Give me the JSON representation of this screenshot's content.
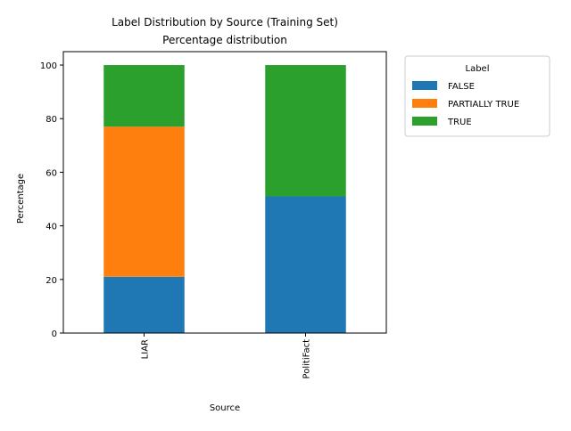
{
  "chart_data": {
    "type": "bar",
    "stacked": true,
    "title": "Label Distribution by Source (Training Set)",
    "subtitle": "Percentage distribution",
    "xlabel": "Source",
    "ylabel": "Percentage",
    "categories": [
      "LIAR",
      "PolitiFact"
    ],
    "series": [
      {
        "name": "FALSE",
        "values": [
          21,
          51
        ],
        "color": "#1f77b4"
      },
      {
        "name": "PARTIALLY TRUE",
        "values": [
          56,
          0
        ],
        "color": "#ff7f0e"
      },
      {
        "name": "TRUE",
        "values": [
          23,
          49
        ],
        "color": "#2ca02c"
      }
    ],
    "ylim": [
      0,
      105
    ],
    "yticks": [
      0,
      20,
      40,
      60,
      80,
      100
    ],
    "xtick_rotation": "vertical",
    "grid": false,
    "legend": {
      "title": "Label",
      "placement": "outside-right"
    }
  }
}
